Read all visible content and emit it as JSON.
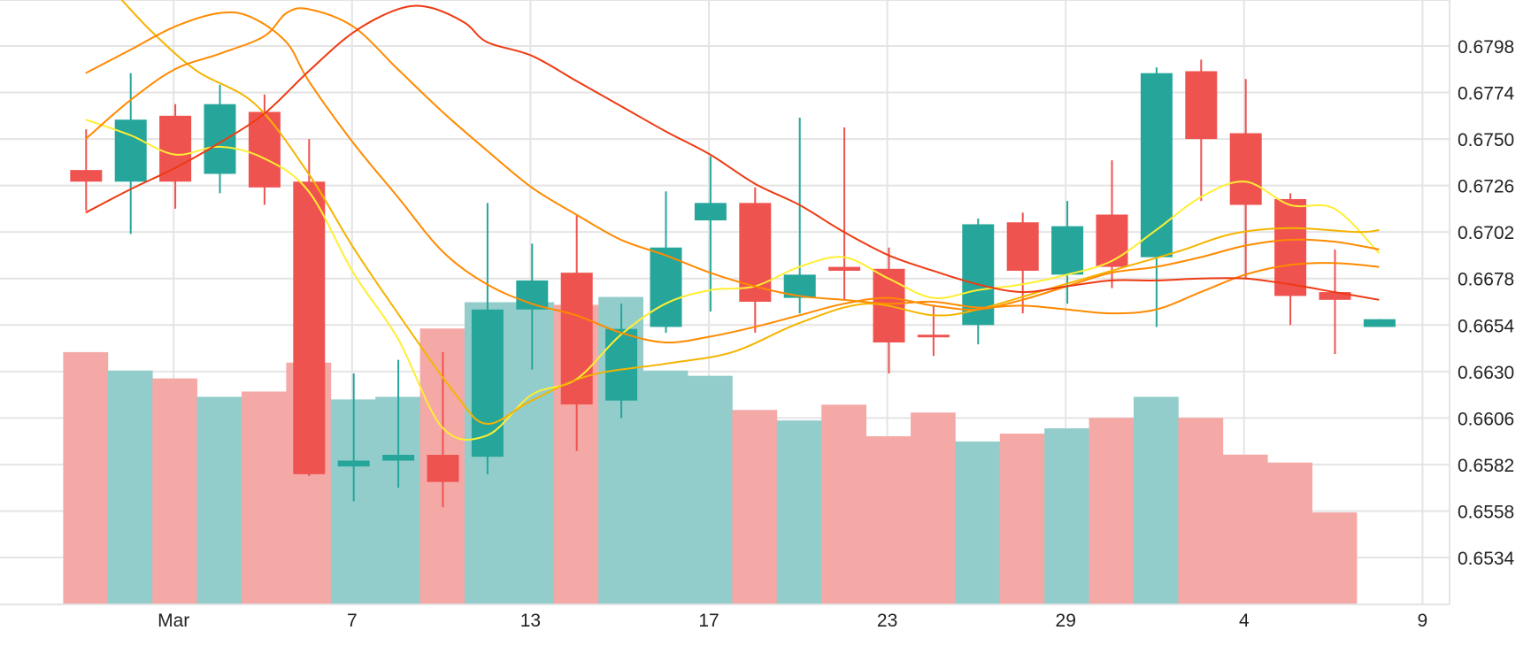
{
  "colors": {
    "up": "#26a69a",
    "down": "#ef5350",
    "volume_up": "#92cdcb",
    "volume_down": "#f4a9a7",
    "grid": "#e4e4e4",
    "axis_text": "#222222",
    "ma_yellow": "#ffee33",
    "ma_gold": "#f5b400",
    "ma_orange": "#ff8a00",
    "ma_red": "#ee3a12"
  },
  "chart_data": {
    "type": "candlestick",
    "title": "",
    "grid": true,
    "y_axis_position": "right",
    "y_ticks": [
      "0.6798",
      "0.6774",
      "0.6750",
      "0.6726",
      "0.6702",
      "0.6678",
      "0.6654",
      "0.6630",
      "0.6606",
      "0.6582",
      "0.6558",
      "0.6534"
    ],
    "ylim": [
      0.651,
      0.682
    ],
    "x_ticks": [
      {
        "label": "Mar",
        "index": 1
      },
      {
        "label": "7",
        "index": 5
      },
      {
        "label": "13",
        "index": 9
      },
      {
        "label": "17",
        "index": 13
      },
      {
        "label": "23",
        "index": 17
      },
      {
        "label": "29",
        "index": 21
      },
      {
        "label": "4",
        "index": 25
      },
      {
        "label": "9",
        "index": 29
      }
    ],
    "x_range": [
      -0.6,
      30.2
    ],
    "candles": [
      {
        "open": 0.6734,
        "high": 0.6755,
        "low": 0.6713,
        "close": 0.6728
      },
      {
        "open": 0.6728,
        "high": 0.6784,
        "low": 0.6701,
        "close": 0.676
      },
      {
        "open": 0.6762,
        "high": 0.6768,
        "low": 0.6714,
        "close": 0.6728
      },
      {
        "open": 0.6732,
        "high": 0.6778,
        "low": 0.6722,
        "close": 0.6768
      },
      {
        "open": 0.6764,
        "high": 0.6773,
        "low": 0.6716,
        "close": 0.6725
      },
      {
        "open": 0.6728,
        "high": 0.675,
        "low": 0.6576,
        "close": 0.6577
      },
      {
        "open": 0.6581,
        "high": 0.6629,
        "low": 0.6563,
        "close": 0.6584
      },
      {
        "open": 0.6584,
        "high": 0.6636,
        "low": 0.657,
        "close": 0.6587
      },
      {
        "open": 0.6587,
        "high": 0.664,
        "low": 0.656,
        "close": 0.6573
      },
      {
        "open": 0.6586,
        "high": 0.6717,
        "low": 0.6577,
        "close": 0.6662
      },
      {
        "open": 0.6662,
        "high": 0.6696,
        "low": 0.6631,
        "close": 0.6677
      },
      {
        "open": 0.6681,
        "high": 0.6711,
        "low": 0.6589,
        "close": 0.6613
      },
      {
        "open": 0.6615,
        "high": 0.6665,
        "low": 0.6606,
        "close": 0.6652
      },
      {
        "open": 0.6653,
        "high": 0.6723,
        "low": 0.665,
        "close": 0.6694
      },
      {
        "open": 0.6708,
        "high": 0.6741,
        "low": 0.6661,
        "close": 0.6717
      },
      {
        "open": 0.6717,
        "high": 0.6725,
        "low": 0.665,
        "close": 0.6666
      },
      {
        "open": 0.6668,
        "high": 0.6761,
        "low": 0.666,
        "close": 0.668
      },
      {
        "open": 0.6684,
        "high": 0.6756,
        "low": 0.6667,
        "close": 0.6682
      },
      {
        "open": 0.6683,
        "high": 0.6694,
        "low": 0.6629,
        "close": 0.6645
      },
      {
        "open": 0.6649,
        "high": 0.6664,
        "low": 0.6638,
        "close": 0.6648
      },
      {
        "open": 0.6654,
        "high": 0.6709,
        "low": 0.6644,
        "close": 0.6706
      },
      {
        "open": 0.6707,
        "high": 0.6712,
        "low": 0.666,
        "close": 0.6682
      },
      {
        "open": 0.668,
        "high": 0.6718,
        "low": 0.6665,
        "close": 0.6705
      },
      {
        "open": 0.6711,
        "high": 0.6739,
        "low": 0.6673,
        "close": 0.6684
      },
      {
        "open": 0.6689,
        "high": 0.6787,
        "low": 0.6653,
        "close": 0.6784
      },
      {
        "open": 0.6785,
        "high": 0.6791,
        "low": 0.6718,
        "close": 0.675
      },
      {
        "open": 0.6753,
        "high": 0.6781,
        "low": 0.6678,
        "close": 0.6716
      },
      {
        "open": 0.6719,
        "high": 0.6722,
        "low": 0.6654,
        "close": 0.6669
      },
      {
        "open": 0.6671,
        "high": 0.6693,
        "low": 0.6639,
        "close": 0.6667
      },
      {
        "open": 0.6653,
        "high": 0.6657,
        "low": 0.6653,
        "close": 0.6657
      }
    ],
    "volume": [
      {
        "value": 0.96,
        "dir": "down"
      },
      {
        "value": 0.89,
        "dir": "up"
      },
      {
        "value": 0.86,
        "dir": "down"
      },
      {
        "value": 0.79,
        "dir": "up"
      },
      {
        "value": 0.81,
        "dir": "down"
      },
      {
        "value": 0.92,
        "dir": "down"
      },
      {
        "value": 0.78,
        "dir": "up"
      },
      {
        "value": 0.79,
        "dir": "up"
      },
      {
        "value": 1.05,
        "dir": "down"
      },
      {
        "value": 1.15,
        "dir": "up"
      },
      {
        "value": 1.15,
        "dir": "up"
      },
      {
        "value": 1.14,
        "dir": "down"
      },
      {
        "value": 1.17,
        "dir": "up"
      },
      {
        "value": 0.89,
        "dir": "up"
      },
      {
        "value": 0.87,
        "dir": "up"
      },
      {
        "value": 0.74,
        "dir": "down"
      },
      {
        "value": 0.7,
        "dir": "up"
      },
      {
        "value": 0.76,
        "dir": "down"
      },
      {
        "value": 0.64,
        "dir": "down"
      },
      {
        "value": 0.73,
        "dir": "down"
      },
      {
        "value": 0.62,
        "dir": "up"
      },
      {
        "value": 0.65,
        "dir": "down"
      },
      {
        "value": 0.67,
        "dir": "up"
      },
      {
        "value": 0.71,
        "dir": "down"
      },
      {
        "value": 0.79,
        "dir": "up"
      },
      {
        "value": 0.71,
        "dir": "down"
      },
      {
        "value": 0.57,
        "dir": "down"
      },
      {
        "value": 0.54,
        "dir": "down"
      },
      {
        "value": 0.35,
        "dir": "down"
      }
    ],
    "volume_max": 2.3,
    "moving_averages": [
      {
        "color_key": "ma_yellow",
        "points": [
          [
            0,
            0.676
          ],
          [
            1,
            0.6752
          ],
          [
            2,
            0.6742
          ],
          [
            3,
            0.6746
          ],
          [
            4,
            0.674
          ],
          [
            5,
            0.6723
          ],
          [
            6,
            0.6681
          ],
          [
            7,
            0.6647
          ],
          [
            8,
            0.6601
          ],
          [
            9,
            0.6597
          ],
          [
            10,
            0.6618
          ],
          [
            11,
            0.6626
          ],
          [
            12,
            0.6649
          ],
          [
            13,
            0.6665
          ],
          [
            14,
            0.6672
          ],
          [
            15,
            0.6674
          ],
          [
            16,
            0.6684
          ],
          [
            17,
            0.6689
          ],
          [
            18,
            0.6678
          ],
          [
            19,
            0.6668
          ],
          [
            20,
            0.6672
          ],
          [
            21,
            0.6675
          ],
          [
            22,
            0.668
          ],
          [
            23,
            0.6687
          ],
          [
            24,
            0.6703
          ],
          [
            25,
            0.672
          ],
          [
            26,
            0.6728
          ],
          [
            27,
            0.6716
          ],
          [
            28,
            0.6714
          ],
          [
            29,
            0.6691
          ]
        ]
      },
      {
        "color_key": "ma_gold",
        "points": [
          [
            0.8,
            0.6822
          ],
          [
            1.5,
            0.6805
          ],
          [
            2.5,
            0.6785
          ],
          [
            3.8,
            0.6768
          ],
          [
            5,
            0.6732
          ],
          [
            6,
            0.6694
          ],
          [
            7,
            0.666
          ],
          [
            8.3,
            0.6618
          ],
          [
            9,
            0.6603
          ],
          [
            10,
            0.6615
          ],
          [
            11.3,
            0.6628
          ],
          [
            13,
            0.6634
          ],
          [
            14.5,
            0.664
          ],
          [
            16,
            0.6655
          ],
          [
            17.5,
            0.6665
          ],
          [
            19,
            0.6659
          ],
          [
            20,
            0.6662
          ],
          [
            21.5,
            0.6672
          ],
          [
            23,
            0.6682
          ],
          [
            24.5,
            0.6692
          ],
          [
            25.7,
            0.6701
          ],
          [
            27,
            0.6704
          ],
          [
            28.5,
            0.6702
          ],
          [
            29,
            0.6703
          ]
        ]
      },
      {
        "color_key": "ma_orange",
        "points": [
          [
            0,
            0.6784
          ],
          [
            1,
            0.6796
          ],
          [
            2,
            0.6808
          ],
          [
            3,
            0.6815
          ],
          [
            3.7,
            0.6813
          ],
          [
            4.5,
            0.68
          ],
          [
            5,
            0.678
          ],
          [
            6,
            0.6748
          ],
          [
            7,
            0.672
          ],
          [
            8,
            0.6692
          ],
          [
            9,
            0.6675
          ],
          [
            10,
            0.6665
          ],
          [
            11,
            0.6659
          ],
          [
            12,
            0.665
          ],
          [
            13,
            0.6645
          ],
          [
            14,
            0.6648
          ],
          [
            15,
            0.6653
          ],
          [
            16,
            0.6659
          ],
          [
            17,
            0.6665
          ],
          [
            18,
            0.6668
          ],
          [
            19,
            0.6664
          ],
          [
            20,
            0.6662
          ],
          [
            21,
            0.6667
          ],
          [
            22,
            0.6674
          ],
          [
            23,
            0.6681
          ],
          [
            24,
            0.6684
          ],
          [
            25,
            0.6689
          ],
          [
            26,
            0.6695
          ],
          [
            27,
            0.6698
          ],
          [
            28,
            0.6697
          ],
          [
            29,
            0.6693
          ]
        ]
      },
      {
        "color_key": "ma_orange",
        "points": [
          [
            0,
            0.675
          ],
          [
            1,
            0.677
          ],
          [
            2,
            0.6786
          ],
          [
            3,
            0.6794
          ],
          [
            4,
            0.6803
          ],
          [
            4.5,
            0.6815
          ],
          [
            5,
            0.6817
          ],
          [
            6,
            0.6808
          ],
          [
            7,
            0.6786
          ],
          [
            8,
            0.6764
          ],
          [
            9,
            0.6744
          ],
          [
            10,
            0.6725
          ],
          [
            11,
            0.6711
          ],
          [
            12,
            0.6698
          ],
          [
            13,
            0.669
          ],
          [
            14,
            0.6681
          ],
          [
            15,
            0.6674
          ],
          [
            16,
            0.6669
          ],
          [
            17,
            0.6667
          ],
          [
            18,
            0.6665
          ],
          [
            19,
            0.6666
          ],
          [
            20,
            0.6663
          ],
          [
            21,
            0.6664
          ],
          [
            22,
            0.6662
          ],
          [
            23,
            0.666
          ],
          [
            24,
            0.6662
          ],
          [
            25,
            0.6671
          ],
          [
            26,
            0.668
          ],
          [
            27,
            0.6685
          ],
          [
            28,
            0.6686
          ],
          [
            29,
            0.6684
          ]
        ]
      },
      {
        "color_key": "ma_red",
        "points": [
          [
            0,
            0.6712
          ],
          [
            1,
            0.6724
          ],
          [
            2,
            0.6735
          ],
          [
            3,
            0.6748
          ],
          [
            4,
            0.6763
          ],
          [
            5,
            0.6785
          ],
          [
            6,
            0.6805
          ],
          [
            7,
            0.6817
          ],
          [
            7.7,
            0.6818
          ],
          [
            8.5,
            0.681
          ],
          [
            9,
            0.68
          ],
          [
            10,
            0.6793
          ],
          [
            11,
            0.678
          ],
          [
            12,
            0.6767
          ],
          [
            13,
            0.6754
          ],
          [
            14,
            0.6742
          ],
          [
            15,
            0.6727
          ],
          [
            16,
            0.6716
          ],
          [
            17,
            0.6702
          ],
          [
            18,
            0.669
          ],
          [
            19,
            0.6682
          ],
          [
            20,
            0.6675
          ],
          [
            21,
            0.6671
          ],
          [
            22,
            0.6674
          ],
          [
            23,
            0.6677
          ],
          [
            24,
            0.6677
          ],
          [
            25,
            0.6678
          ],
          [
            26,
            0.6678
          ],
          [
            27,
            0.6675
          ],
          [
            28,
            0.6671
          ],
          [
            29,
            0.6667
          ]
        ]
      }
    ]
  }
}
